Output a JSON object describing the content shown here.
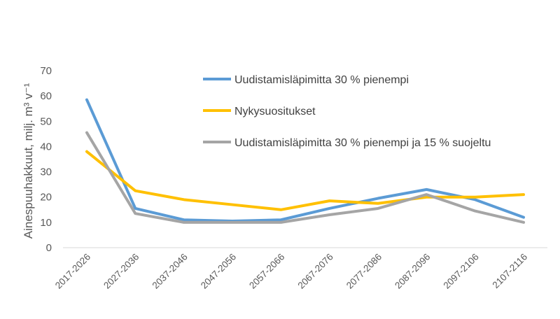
{
  "chart_data": {
    "type": "line",
    "title": "",
    "xlabel": "",
    "ylabel": "Ainespuuhakkuut, milj. m³ v⁻¹",
    "ylim": [
      0,
      70
    ],
    "yticks": [
      0,
      10,
      20,
      30,
      40,
      50,
      60,
      70
    ],
    "grid": false,
    "legend_position": "top-right",
    "categories": [
      "2017-2026",
      "2027-2036",
      "2037-2046",
      "2047-2056",
      "2057-2066",
      "2067-2076",
      "2077-2086",
      "2087-2096",
      "2097-2106",
      "2107-2116"
    ],
    "series": [
      {
        "name": "Uudistamisläpimitta 30 % pienempi",
        "color": "#5B9BD5",
        "values": [
          58.5,
          15.5,
          11,
          10.5,
          11,
          15.5,
          19.5,
          23,
          19,
          12
        ]
      },
      {
        "name": "Nykysuositukset",
        "color": "#FFC000",
        "values": [
          38,
          22.5,
          19,
          17,
          15,
          18.5,
          17.5,
          20,
          20,
          21
        ]
      },
      {
        "name": "Uudistamisläpimitta 30 % pienempi ja 15 % suojeltu",
        "color": "#A5A5A5",
        "values": [
          45.5,
          13.5,
          10,
          10,
          10,
          13,
          15.5,
          21,
          14.5,
          10
        ]
      }
    ]
  }
}
